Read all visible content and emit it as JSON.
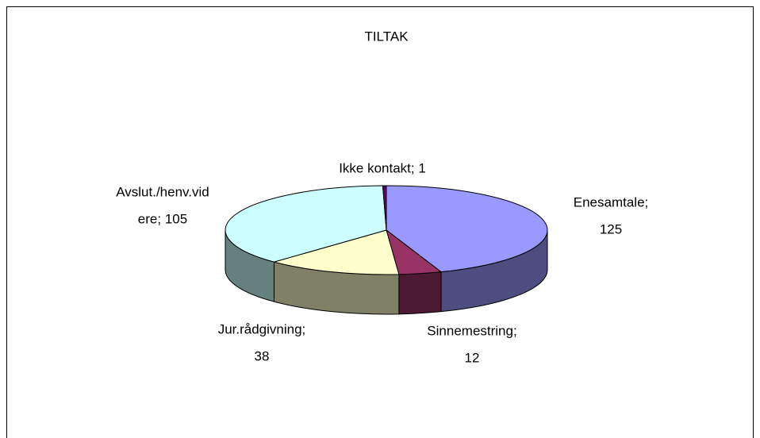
{
  "chart_data": {
    "type": "pie3d",
    "title": "TILTAK",
    "values": [
      125,
      12,
      38,
      105,
      1
    ],
    "value_labels": [
      [
        "Enesamtale;",
        "125"
      ],
      [
        "Sinnemestring;",
        "12"
      ],
      [
        "Jur.rådgivning;",
        "38"
      ],
      [
        "Avslut./henv.vid",
        "ere; 105"
      ],
      [
        "Ikke kontakt; 1"
      ]
    ],
    "colors": [
      "#9999ff",
      "#993366",
      "#ffffcc",
      "#ccffff",
      "#660066"
    ]
  }
}
